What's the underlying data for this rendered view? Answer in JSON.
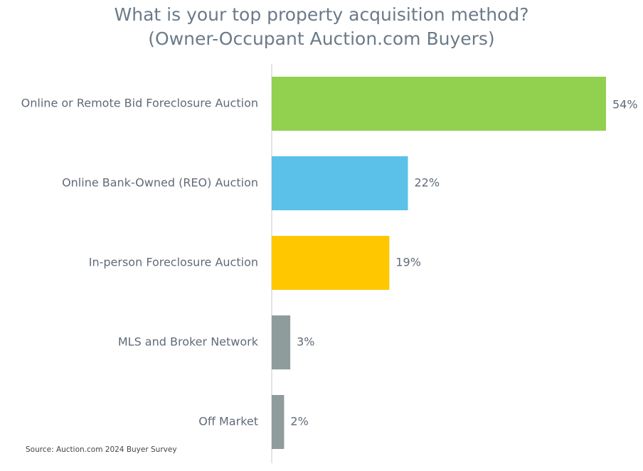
{
  "chart_data": {
    "type": "bar",
    "orientation": "horizontal",
    "title": "What is your top property acquisition method?",
    "subtitle": "(Owner-Occupant Auction.com Buyers)",
    "categories": [
      "Online or Remote Bid Foreclosure Auction",
      "Online Bank-Owned (REO) Auction",
      "In-person Foreclosure Auction",
      "MLS and Broker Network",
      "Off Market"
    ],
    "values": [
      54,
      22,
      19,
      3,
      2
    ],
    "value_labels": [
      "54%",
      "22%",
      "19%",
      "3%",
      "2%"
    ],
    "colors": [
      "#92d050",
      "#5bc1e8",
      "#ffc700",
      "#8e9c9c",
      "#8e9c9c"
    ],
    "unit": "%",
    "xlim": [
      0,
      54
    ],
    "grid": false,
    "source": "Source: Auction.com 2024 Buyer Survey"
  }
}
